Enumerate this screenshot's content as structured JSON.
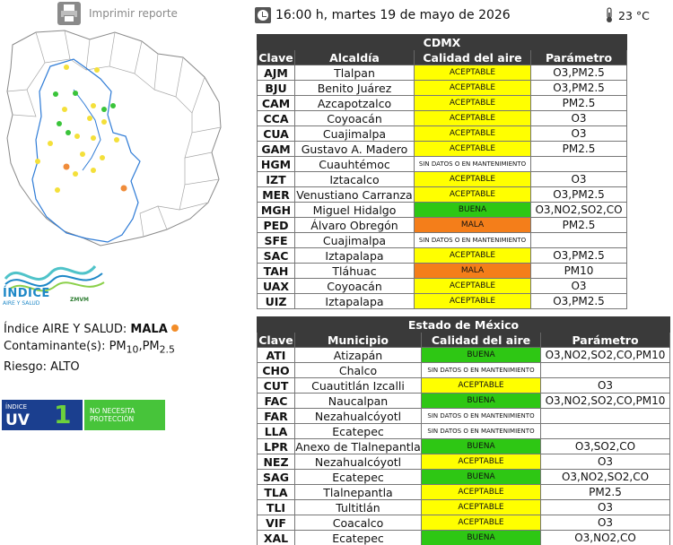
{
  "print": {
    "label": "Imprimir reporte",
    "icon": "printer-icon"
  },
  "header": {
    "datetime": "16:00 h, martes 19 de mayo de 2026",
    "temperature": "23 °C",
    "clock_icon": "clock-icon",
    "thermometer_icon": "thermometer-icon"
  },
  "logo": {
    "title": "ÍNDICE",
    "subtitle": "AIRE Y SALUD",
    "tag": "ZMVM"
  },
  "summary": {
    "indice_label": "Índice AIRE Y SALUD:",
    "indice_value": "MALA",
    "contaminantes_label": "Contaminante(s):",
    "contaminantes": [
      "PM",
      "10",
      ",PM",
      "2.5"
    ],
    "riesgo": "Riesgo: ALTO"
  },
  "uv": {
    "indice": "ÍNDICE",
    "uv": "UV",
    "value": "1",
    "protection": "NO NECESITA PROTECCIÓN"
  },
  "colors": {
    "ACEPTABLE": "#ffff00",
    "BUENA": "#2ec714",
    "MALA": "#f47e1a",
    "header": "#3a3a3a"
  },
  "cdmx": {
    "title": "CDMX",
    "headers": [
      "Clave",
      "Alcaldía",
      "Calidad del aire",
      "Parámetro"
    ],
    "rows": [
      {
        "clave": "AJM",
        "lugar": "Tlalpan",
        "calidad": "ACEPTABLE",
        "param": "O3,PM2.5"
      },
      {
        "clave": "BJU",
        "lugar": "Benito Juárez",
        "calidad": "ACEPTABLE",
        "param": "O3,PM2.5"
      },
      {
        "clave": "CAM",
        "lugar": "Azcapotzalco",
        "calidad": "ACEPTABLE",
        "param": "PM2.5"
      },
      {
        "clave": "CCA",
        "lugar": "Coyoacán",
        "calidad": "ACEPTABLE",
        "param": "O3"
      },
      {
        "clave": "CUA",
        "lugar": "Cuajimalpa",
        "calidad": "ACEPTABLE",
        "param": "O3"
      },
      {
        "clave": "GAM",
        "lugar": "Gustavo A. Madero",
        "calidad": "ACEPTABLE",
        "param": "PM2.5"
      },
      {
        "clave": "HGM",
        "lugar": "Cuauhtémoc",
        "calidad": "SIN DATOS O EN MANTENIMIENTO",
        "param": ""
      },
      {
        "clave": "IZT",
        "lugar": "Iztacalco",
        "calidad": "ACEPTABLE",
        "param": "O3"
      },
      {
        "clave": "MER",
        "lugar": "Venustiano Carranza",
        "calidad": "ACEPTABLE",
        "param": "O3,PM2.5"
      },
      {
        "clave": "MGH",
        "lugar": "Miguel Hidalgo",
        "calidad": "BUENA",
        "param": "O3,NO2,SO2,CO"
      },
      {
        "clave": "PED",
        "lugar": "Álvaro Obregón",
        "calidad": "MALA",
        "param": "PM2.5"
      },
      {
        "clave": "SFE",
        "lugar": "Cuajimalpa",
        "calidad": "SIN DATOS O EN MANTENIMIENTO",
        "param": ""
      },
      {
        "clave": "SAC",
        "lugar": "Iztapalapa",
        "calidad": "ACEPTABLE",
        "param": "O3,PM2.5"
      },
      {
        "clave": "TAH",
        "lugar": "Tláhuac",
        "calidad": "MALA",
        "param": "PM10"
      },
      {
        "clave": "UAX",
        "lugar": "Coyoacán",
        "calidad": "ACEPTABLE",
        "param": "O3"
      },
      {
        "clave": "UIZ",
        "lugar": "Iztapalapa",
        "calidad": "ACEPTABLE",
        "param": "O3,PM2.5"
      }
    ]
  },
  "edomex": {
    "title": "Estado de México",
    "headers": [
      "Clave",
      "Municipio",
      "Calidad del aire",
      "Parámetro"
    ],
    "rows": [
      {
        "clave": "ATI",
        "lugar": "Atizapán",
        "calidad": "BUENA",
        "param": "O3,NO2,SO2,CO,PM10"
      },
      {
        "clave": "CHO",
        "lugar": "Chalco",
        "calidad": "SIN DATOS O EN MANTENIMIENTO",
        "param": ""
      },
      {
        "clave": "CUT",
        "lugar": "Cuautitlán Izcalli",
        "calidad": "ACEPTABLE",
        "param": "O3"
      },
      {
        "clave": "FAC",
        "lugar": "Naucalpan",
        "calidad": "BUENA",
        "param": "O3,NO2,SO2,CO,PM10"
      },
      {
        "clave": "FAR",
        "lugar": "Nezahualcóyotl",
        "calidad": "SIN DATOS O EN MANTENIMIENTO",
        "param": ""
      },
      {
        "clave": "LLA",
        "lugar": "Ecatepec",
        "calidad": "SIN DATOS O EN MANTENIMIENTO",
        "param": ""
      },
      {
        "clave": "LPR",
        "lugar": "Anexo de Tlalnepantla",
        "calidad": "BUENA",
        "param": "O3,SO2,CO"
      },
      {
        "clave": "NEZ",
        "lugar": "Nezahualcóyotl",
        "calidad": "ACEPTABLE",
        "param": "O3"
      },
      {
        "clave": "SAG",
        "lugar": "Ecatepec",
        "calidad": "BUENA",
        "param": "O3,NO2,SO2,CO"
      },
      {
        "clave": "TLA",
        "lugar": "Tlalnepantla",
        "calidad": "ACEPTABLE",
        "param": "PM2.5"
      },
      {
        "clave": "TLI",
        "lugar": "Tultitlán",
        "calidad": "ACEPTABLE",
        "param": "O3"
      },
      {
        "clave": "VIF",
        "lugar": "Coacalco",
        "calidad": "ACEPTABLE",
        "param": "O3"
      },
      {
        "clave": "XAL",
        "lugar": "Ecatepec",
        "calidad": "BUENA",
        "param": "O3,NO2,CO"
      }
    ]
  },
  "chart_data": [
    {
      "type": "table",
      "title": "CDMX",
      "columns": [
        "Clave",
        "Alcaldía",
        "Calidad del aire",
        "Parámetro"
      ],
      "source": "cdmx.rows"
    },
    {
      "type": "table",
      "title": "Estado de México",
      "columns": [
        "Clave",
        "Municipio",
        "Calidad del aire",
        "Parámetro"
      ],
      "source": "edomex.rows"
    }
  ]
}
